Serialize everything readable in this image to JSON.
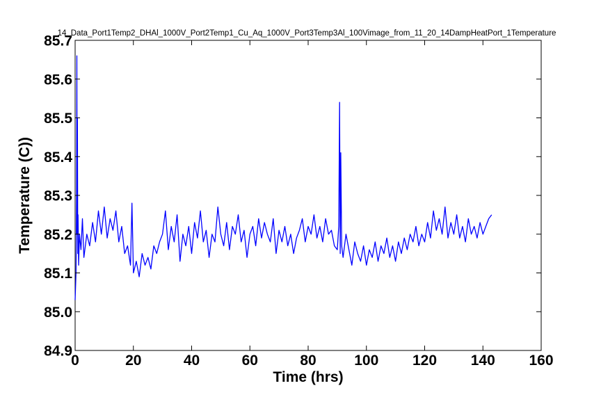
{
  "chart_data": {
    "type": "line",
    "title": "14_Data_Port1Temp2_DHAl_1000V_Port2Temp1_Cu_Aq_1000V_Port3Temp3Al_100Vimage_from_11_20_14DampHeatPort_1Temperature",
    "xlabel": "Time (hrs)",
    "ylabel": "Temperature (C))",
    "xlim": [
      0,
      160
    ],
    "ylim": [
      84.9,
      85.7
    ],
    "xticks": [
      0,
      20,
      40,
      60,
      80,
      100,
      120,
      140,
      160
    ],
    "xtick_labels": [
      "0",
      "20",
      "40",
      "60",
      "80",
      "100",
      "120",
      "140",
      "160"
    ],
    "yticks": [
      84.9,
      85.0,
      85.1,
      85.2,
      85.3,
      85.4,
      85.5,
      85.6,
      85.7
    ],
    "ytick_labels": [
      "84.9",
      "85.0",
      "85.1",
      "85.2",
      "85.3",
      "85.4",
      "85.5",
      "85.6",
      "85.7"
    ],
    "grid": false,
    "legend": "none",
    "series": [
      {
        "color": "#0000ff",
        "x": [
          0,
          0.3,
          0.5,
          0.6,
          0.7,
          0.8,
          0.9,
          1.0,
          1.2,
          1.5,
          2,
          2.5,
          3,
          4,
          5,
          6,
          7,
          8,
          9,
          10,
          11,
          12,
          13,
          14,
          15,
          16,
          17,
          18,
          19,
          19.5,
          20,
          21,
          22,
          23,
          24,
          25,
          26,
          27,
          28,
          29,
          30,
          31,
          32,
          33,
          34,
          35,
          36,
          37,
          38,
          39,
          40,
          41,
          42,
          43,
          44,
          45,
          46,
          47,
          48,
          49,
          50,
          51,
          52,
          53,
          54,
          55,
          56,
          57,
          58,
          59,
          60,
          61,
          62,
          63,
          64,
          65,
          66,
          67,
          68,
          69,
          70,
          71,
          72,
          73,
          74,
          75,
          76,
          77,
          78,
          79,
          80,
          81,
          82,
          83,
          84,
          85,
          86,
          87,
          88,
          89,
          90,
          90.5,
          90.8,
          91.0,
          91.2,
          91.5,
          92,
          93,
          94,
          95,
          96,
          97,
          98,
          99,
          100,
          101,
          102,
          103,
          104,
          105,
          106,
          107,
          108,
          109,
          110,
          111,
          112,
          113,
          114,
          115,
          116,
          117,
          118,
          119,
          120,
          121,
          122,
          123,
          124,
          125,
          126,
          127,
          128,
          129,
          130,
          131,
          132,
          133,
          134,
          135,
          136,
          137,
          138,
          139,
          140,
          141,
          142,
          143
        ],
        "y": [
          85.03,
          85.1,
          85.3,
          85.66,
          85.2,
          85.5,
          85.15,
          85.25,
          85.12,
          85.2,
          85.16,
          85.24,
          85.14,
          85.2,
          85.17,
          85.23,
          85.18,
          85.26,
          85.2,
          85.27,
          85.19,
          85.24,
          85.21,
          85.26,
          85.18,
          85.22,
          85.15,
          85.17,
          85.12,
          85.28,
          85.1,
          85.13,
          85.09,
          85.15,
          85.12,
          85.14,
          85.11,
          85.17,
          85.15,
          85.18,
          85.2,
          85.26,
          85.16,
          85.22,
          85.18,
          85.25,
          85.13,
          85.2,
          85.17,
          85.22,
          85.15,
          85.23,
          85.19,
          85.26,
          85.18,
          85.21,
          85.14,
          85.2,
          85.18,
          85.27,
          85.2,
          85.17,
          85.23,
          85.16,
          85.22,
          85.2,
          85.25,
          85.18,
          85.21,
          85.14,
          85.2,
          85.22,
          85.17,
          85.24,
          85.19,
          85.23,
          85.2,
          85.18,
          85.24,
          85.15,
          85.21,
          85.18,
          85.22,
          85.17,
          85.2,
          85.15,
          85.19,
          85.21,
          85.24,
          85.18,
          85.22,
          85.2,
          85.25,
          85.19,
          85.22,
          85.18,
          85.24,
          85.2,
          85.21,
          85.17,
          85.16,
          85.22,
          85.54,
          85.15,
          85.41,
          85.17,
          85.14,
          85.2,
          85.16,
          85.12,
          85.18,
          85.15,
          85.13,
          85.17,
          85.12,
          85.16,
          85.14,
          85.18,
          85.13,
          85.17,
          85.15,
          85.19,
          85.14,
          85.17,
          85.13,
          85.18,
          85.15,
          85.19,
          85.16,
          85.2,
          85.18,
          85.22,
          85.17,
          85.2,
          85.18,
          85.23,
          85.19,
          85.26,
          85.21,
          85.24,
          85.2,
          85.27,
          85.19,
          85.23,
          85.2,
          85.25,
          85.19,
          85.22,
          85.18,
          85.24,
          85.2,
          85.22,
          85.19,
          85.23,
          85.2,
          85.22,
          85.24,
          85.25
        ]
      }
    ]
  }
}
